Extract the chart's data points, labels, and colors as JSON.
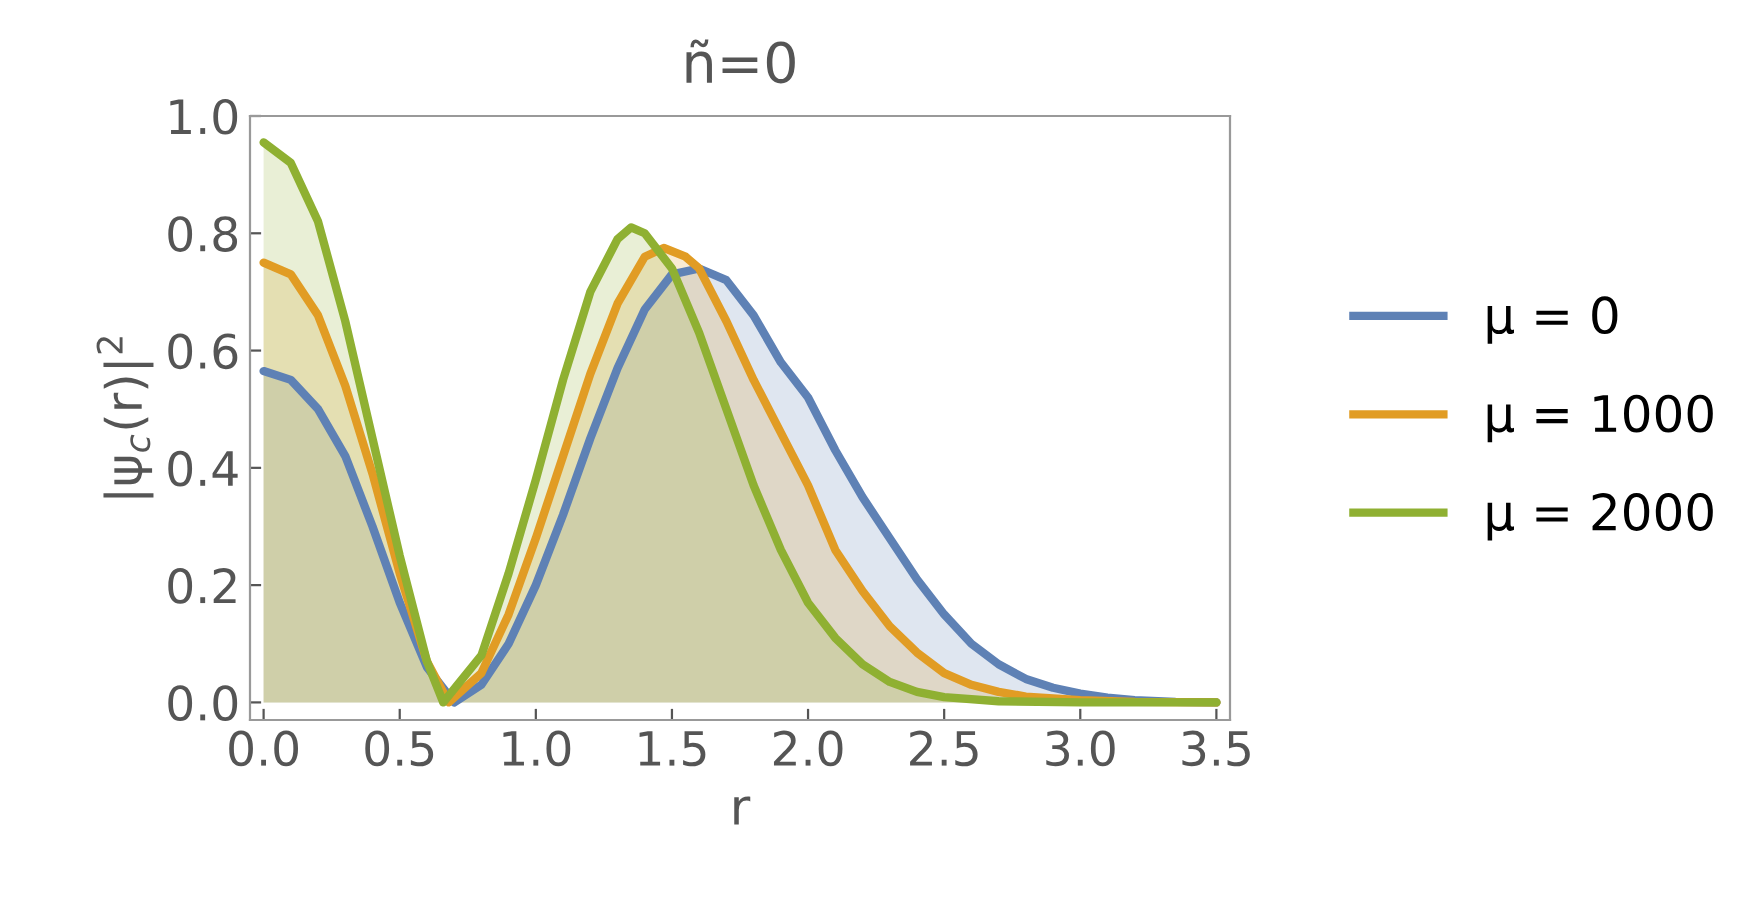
{
  "chart_data": {
    "type": "area",
    "title": "ñ=0",
    "xlabel": "r",
    "ylabel": "|ψ$_{c}$(r)|$^{2}$",
    "xlim": [
      -0.05,
      3.55
    ],
    "ylim": [
      -0.03,
      1.0
    ],
    "xticks": [
      {
        "value": 0,
        "label": "0.0"
      },
      0.5,
      {
        "value": 1,
        "label": "1.0"
      },
      1.5,
      {
        "value": 2,
        "label": "2.0"
      },
      2.5,
      {
        "value": 3,
        "label": "3.0"
      },
      3.5
    ],
    "yticks": [
      {
        "value": 0,
        "label": "0.0"
      },
      0.2,
      0.4,
      0.6,
      0.8,
      {
        "value": 1,
        "label": "1.0"
      }
    ],
    "grid": false,
    "legend": "right",
    "series": [
      {
        "name": "μ = 0",
        "color": "#5e81b5",
        "x": [
          0,
          0.1,
          0.2,
          0.3,
          0.4,
          0.5,
          0.6,
          0.7,
          0.8,
          0.9,
          1.0,
          1.1,
          1.2,
          1.3,
          1.4,
          1.5,
          1.6,
          1.7,
          1.8,
          1.9,
          2.0,
          2.1,
          2.2,
          2.3,
          2.4,
          2.5,
          2.6,
          2.7,
          2.8,
          2.9,
          3.0,
          3.1,
          3.2,
          3.35,
          3.5
        ],
        "values": [
          0.565,
          0.55,
          0.5,
          0.42,
          0.3,
          0.17,
          0.06,
          0.0,
          0.03,
          0.1,
          0.2,
          0.32,
          0.45,
          0.57,
          0.67,
          0.73,
          0.74,
          0.72,
          0.66,
          0.58,
          0.52,
          0.43,
          0.35,
          0.28,
          0.21,
          0.15,
          0.1,
          0.065,
          0.04,
          0.025,
          0.015,
          0.008,
          0.004,
          0.001,
          0
        ]
      },
      {
        "name": "μ = 1000",
        "color": "#e19c24",
        "x": [
          0,
          0.1,
          0.2,
          0.3,
          0.4,
          0.5,
          0.6,
          0.68,
          0.8,
          0.9,
          1.0,
          1.1,
          1.2,
          1.3,
          1.4,
          1.47,
          1.55,
          1.6,
          1.7,
          1.8,
          1.9,
          2.0,
          2.1,
          2.2,
          2.3,
          2.4,
          2.5,
          2.6,
          2.7,
          2.8,
          3.0,
          3.2,
          3.5
        ],
        "values": [
          0.75,
          0.73,
          0.66,
          0.54,
          0.39,
          0.22,
          0.07,
          0,
          0.05,
          0.15,
          0.28,
          0.42,
          0.56,
          0.68,
          0.76,
          0.775,
          0.76,
          0.74,
          0.65,
          0.55,
          0.46,
          0.37,
          0.26,
          0.19,
          0.13,
          0.085,
          0.05,
          0.03,
          0.018,
          0.01,
          0.004,
          0.001,
          0
        ]
      },
      {
        "name": "μ = 2000",
        "color": "#8fb032",
        "x": [
          0,
          0.1,
          0.2,
          0.3,
          0.4,
          0.5,
          0.6,
          0.66,
          0.8,
          0.9,
          1.0,
          1.1,
          1.2,
          1.3,
          1.35,
          1.4,
          1.5,
          1.6,
          1.7,
          1.8,
          1.9,
          2.0,
          2.1,
          2.2,
          2.3,
          2.4,
          2.5,
          2.7,
          3.0,
          3.5
        ],
        "values": [
          0.955,
          0.92,
          0.82,
          0.65,
          0.45,
          0.25,
          0.07,
          0,
          0.08,
          0.22,
          0.38,
          0.55,
          0.7,
          0.79,
          0.81,
          0.8,
          0.74,
          0.63,
          0.5,
          0.37,
          0.26,
          0.17,
          0.11,
          0.065,
          0.035,
          0.018,
          0.009,
          0.002,
          0,
          0
        ]
      }
    ]
  }
}
